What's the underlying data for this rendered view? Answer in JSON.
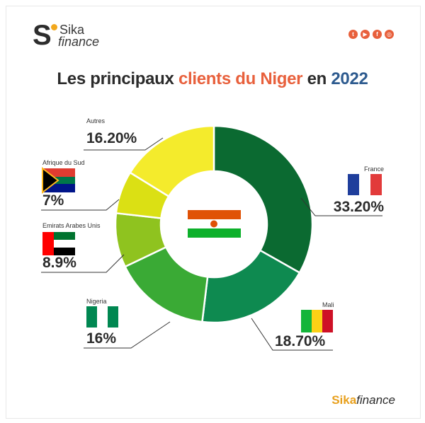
{
  "brand": {
    "logo_letter": "S",
    "logo_top": "Sika",
    "logo_bottom": "finance",
    "footer_a": "Sika",
    "footer_b": "finance"
  },
  "socials": [
    "twitter-icon",
    "youtube-icon",
    "facebook-icon",
    "instagram-icon"
  ],
  "title": {
    "part1": "Les principaux ",
    "part2": "clients du Niger",
    "part3": " en ",
    "year": "2022"
  },
  "chart_data": {
    "type": "pie",
    "donut": true,
    "slices": [
      {
        "label": "France",
        "value": 33.2,
        "display": "33.20%",
        "color": "#0b6a31"
      },
      {
        "label": "Mali",
        "value": 18.7,
        "display": "18.70%",
        "color": "#0e8a50"
      },
      {
        "label": "Nigeria",
        "value": 16.0,
        "display": "16%",
        "color": "#3aaa35"
      },
      {
        "label": "Emirats Arabes Unis",
        "value": 8.9,
        "display": "8.9%",
        "color": "#8fc31f"
      },
      {
        "label": "Afrique du Sud",
        "value": 7.0,
        "display": "7%",
        "color": "#dbe014"
      },
      {
        "label": "Autres",
        "value": 16.2,
        "display": "16.20%",
        "color": "#f4eb2c"
      }
    ]
  }
}
